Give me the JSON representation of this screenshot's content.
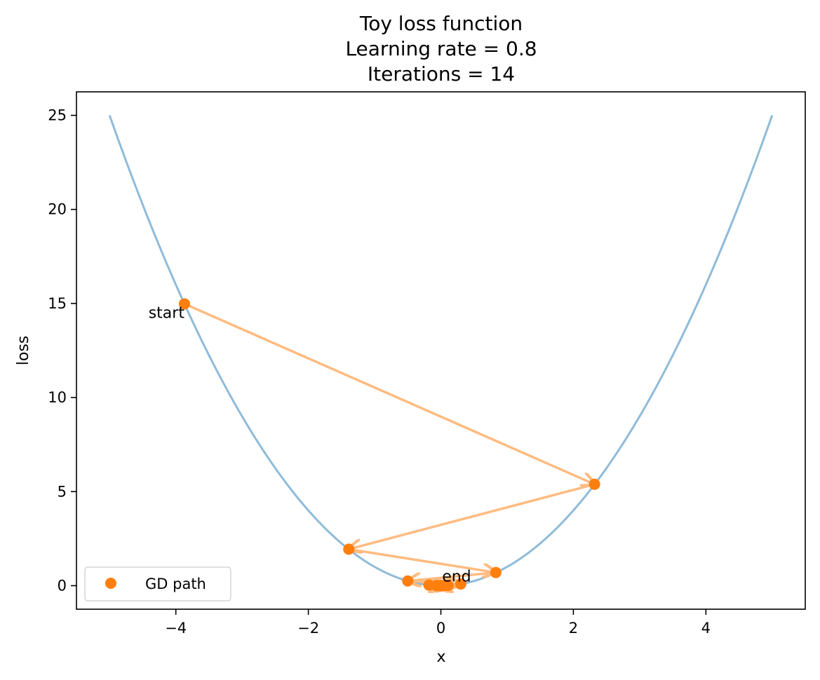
{
  "chart_data": {
    "type": "line",
    "title_lines": [
      "Toy loss function",
      "Learning rate = 0.8",
      "Iterations = 14"
    ],
    "xlabel": "x",
    "ylabel": "loss",
    "xlim": [
      -5.5,
      5.5
    ],
    "ylim": [
      -1.25,
      26.25
    ],
    "x_ticks": [
      -4,
      -2,
      0,
      2,
      4
    ],
    "y_ticks": [
      0,
      5,
      10,
      15,
      20,
      25
    ],
    "x_tick_labels": [
      "−4",
      "−2",
      "0",
      "2",
      "4"
    ],
    "y_tick_labels": [
      "0",
      "5",
      "10",
      "15",
      "20",
      "25"
    ],
    "grid": false,
    "legend_position": "lower-left",
    "curve": {
      "function": "x^2",
      "x_range": [
        -5,
        5
      ],
      "color": "#8fbbd9"
    },
    "series": [
      {
        "name": "GD path",
        "color": "#ff7f0e",
        "arrow_color": "#ffbb80",
        "x": [
          -3.87,
          2.32,
          -1.39,
          0.83,
          -0.5,
          0.3,
          -0.18,
          0.11,
          -0.065,
          0.039,
          -0.023,
          0.014,
          -0.008,
          0.005,
          -0.003
        ],
        "y": [
          14.98,
          5.39,
          1.94,
          0.7,
          0.25,
          0.09,
          0.032,
          0.012,
          0.004,
          0.0015,
          0.0005,
          0.0002,
          0.0001,
          0.0,
          0.0
        ]
      }
    ],
    "annotations": [
      {
        "text": "start",
        "point_index": 0
      },
      {
        "text": "end",
        "point_index": 14
      }
    ]
  }
}
